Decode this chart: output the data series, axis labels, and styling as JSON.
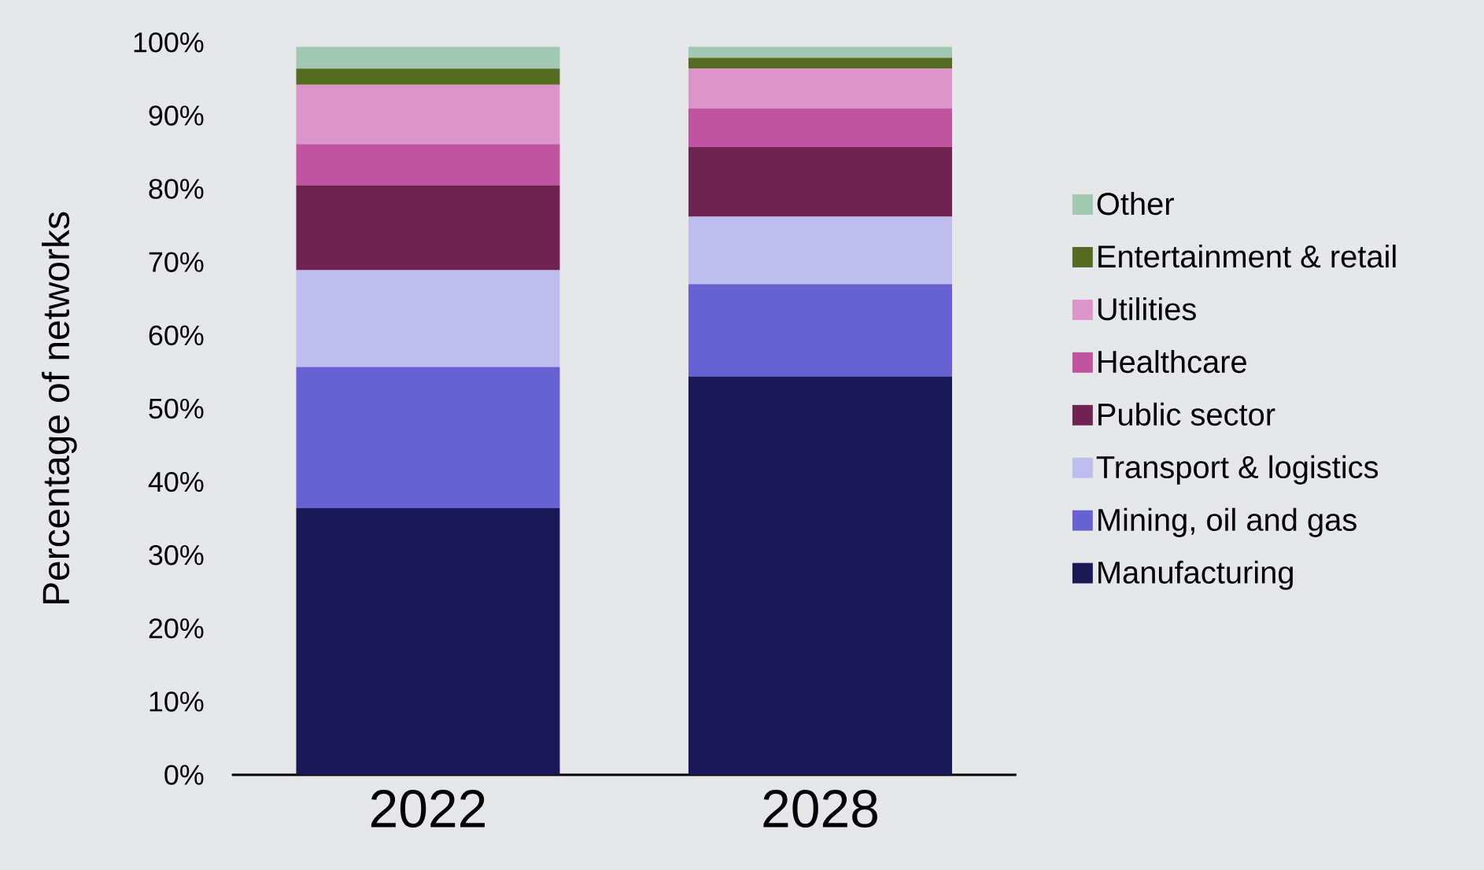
{
  "chart_data": {
    "type": "bar",
    "stacked": true,
    "categories": [
      "2022",
      "2028"
    ],
    "ylabel": "Percentage of networks",
    "ylim": [
      0,
      100
    ],
    "yticks": [
      {
        "value": 0,
        "label": "0%"
      },
      {
        "value": 10,
        "label": "10%"
      },
      {
        "value": 20,
        "label": "20%"
      },
      {
        "value": 30,
        "label": "30%"
      },
      {
        "value": 40,
        "label": "40%"
      },
      {
        "value": 50,
        "label": "50%"
      },
      {
        "value": 60,
        "label": "60%"
      },
      {
        "value": 70,
        "label": "70%"
      },
      {
        "value": 80,
        "label": "80%"
      },
      {
        "value": 90,
        "label": "90%"
      },
      {
        "value": 100,
        "label": "100%"
      }
    ],
    "legend": "right",
    "series": [
      {
        "name": "Manufacturing",
        "color": "#1b1858",
        "values": [
          36.4,
          54.4
        ]
      },
      {
        "name": "Mining, oil and gas",
        "color": "#6762d3",
        "values": [
          19.3,
          12.6
        ]
      },
      {
        "name": "Transport & logistics",
        "color": "#bfbdee",
        "values": [
          13.2,
          9.2
        ]
      },
      {
        "name": "Public sector",
        "color": "#6f2350",
        "values": [
          11.6,
          9.5
        ]
      },
      {
        "name": "Healthcare",
        "color": "#c0549f",
        "values": [
          5.6,
          5.3
        ]
      },
      {
        "name": "Utilities",
        "color": "#dc95c8",
        "values": [
          8.1,
          5.4
        ]
      },
      {
        "name": "Entertainment & retail",
        "color": "#546b21",
        "values": [
          2.2,
          1.5
        ]
      },
      {
        "name": "Other",
        "color": "#a1c8b3",
        "values": [
          3.0,
          1.5
        ]
      }
    ]
  }
}
